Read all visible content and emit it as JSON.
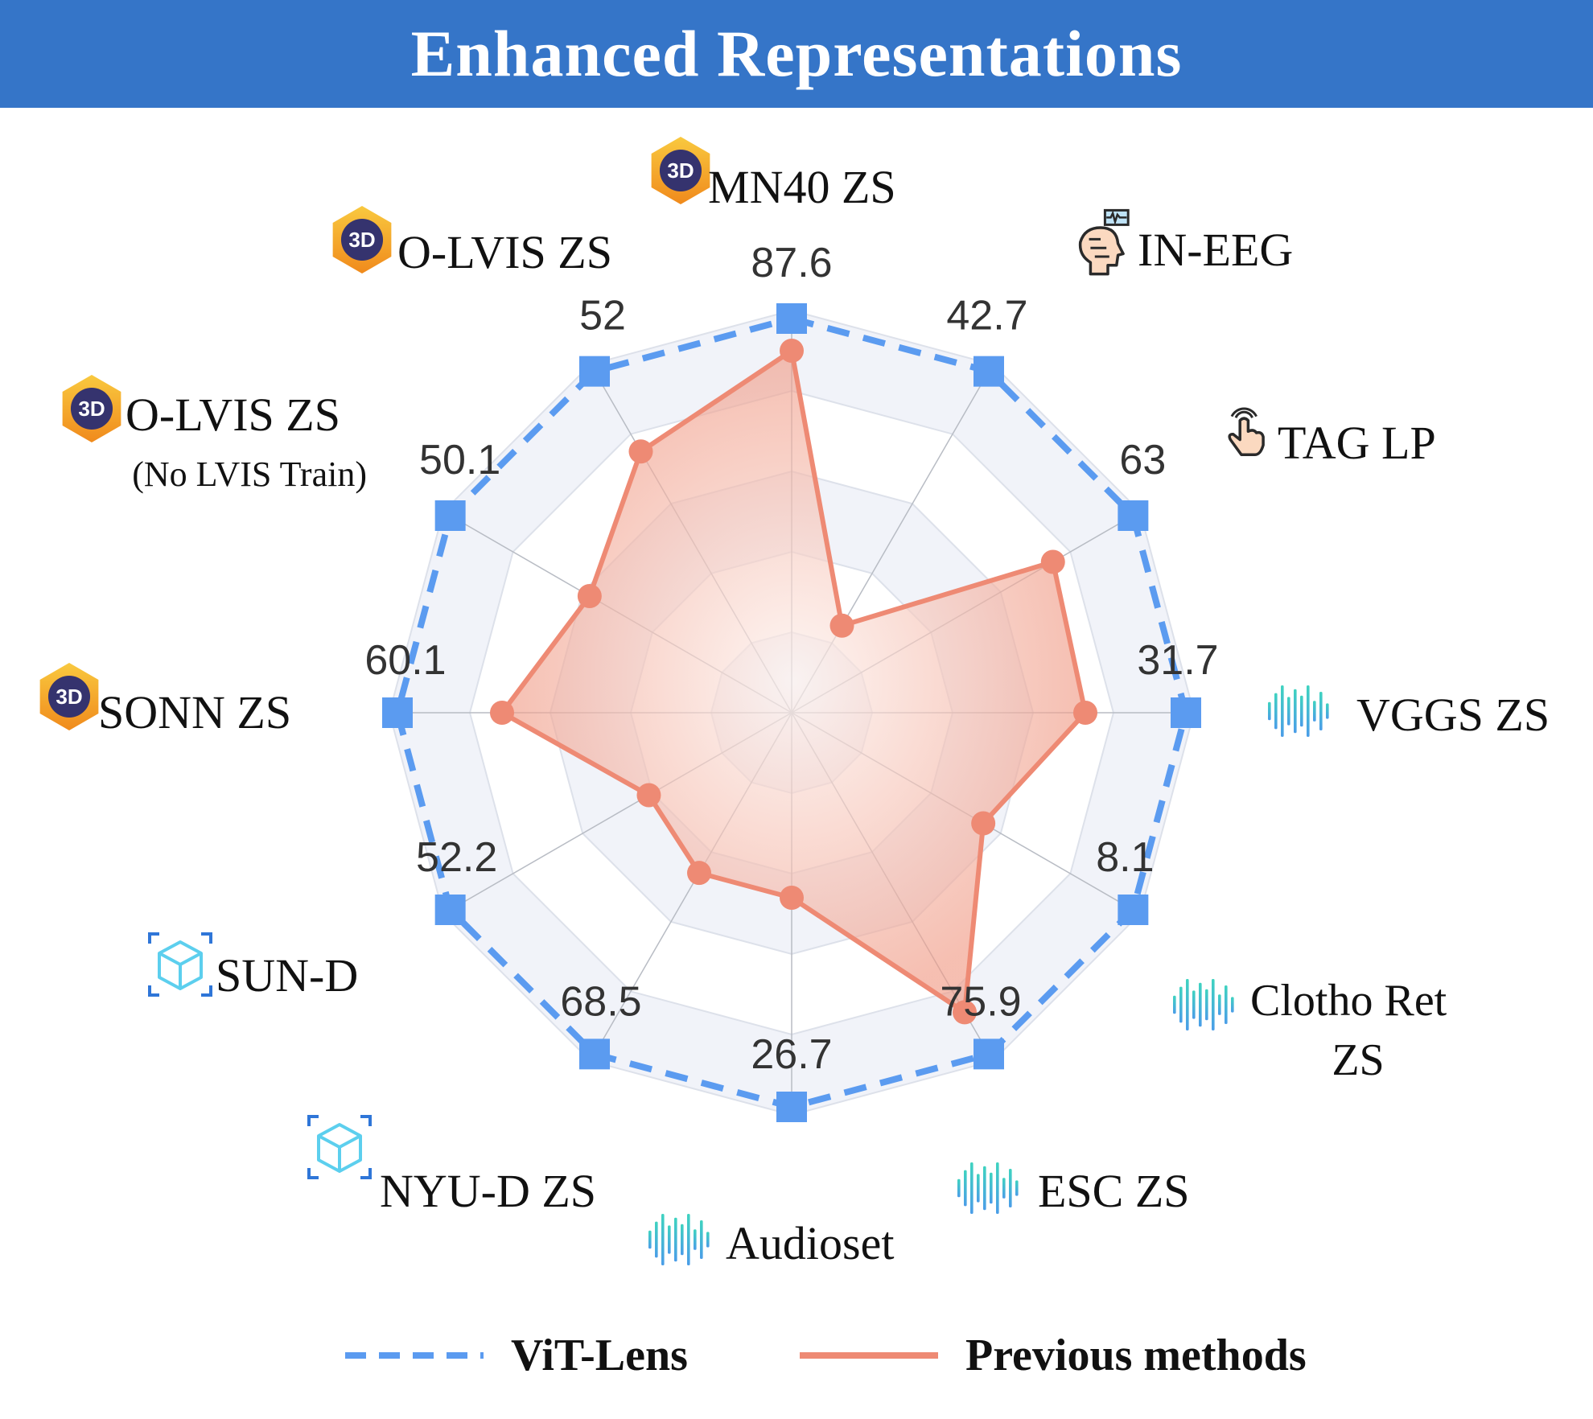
{
  "title": "Enhanced Representations",
  "chart_data": {
    "type": "radar",
    "categories": [
      {
        "label": "MN40 ZS",
        "icon": "3d-cube-hexagon-icon"
      },
      {
        "label": "IN-EEG",
        "icon": "brain-eeg-head-icon"
      },
      {
        "label": "TAG LP",
        "icon": "touch-finger-icon"
      },
      {
        "label": "VGGS ZS",
        "icon": "audio-waveform-icon"
      },
      {
        "label": "Clotho Ret ZS",
        "icon": "audio-waveform-icon"
      },
      {
        "label": "ESC ZS",
        "icon": "audio-waveform-icon"
      },
      {
        "label": "Audioset",
        "icon": "audio-waveform-icon"
      },
      {
        "label": "NYU-D ZS",
        "icon": "depth-cube-icon"
      },
      {
        "label": "SUN-D",
        "icon": "depth-cube-icon"
      },
      {
        "label": "SONN ZS",
        "icon": "3d-cube-hexagon-icon"
      },
      {
        "label": "O-LVIS ZS",
        "sublabel": "(No LVIS Train)",
        "icon": "3d-cube-hexagon-icon"
      },
      {
        "label": "O-LVIS ZS",
        "icon": "3d-cube-hexagon-icon"
      }
    ],
    "series": [
      {
        "name": "ViT-Lens",
        "style": "dashed",
        "marker": "square",
        "color": "#5b9bf0",
        "value_labels": [
          "87.6",
          "42.7",
          "63",
          "31.7",
          "8.1",
          "75.9",
          "26.7",
          "68.5",
          "52.2",
          "60.1",
          "50.1",
          "52"
        ],
        "normalized": [
          0.98,
          0.98,
          0.98,
          0.98,
          0.98,
          0.98,
          0.98,
          0.98,
          0.98,
          0.98,
          0.98,
          0.98
        ]
      },
      {
        "name": "Previous methods",
        "style": "solid",
        "marker": "circle",
        "color": "#ee8a74",
        "fill": "#f6b3a3",
        "normalized": [
          0.9,
          0.25,
          0.75,
          0.73,
          0.55,
          0.86,
          0.46,
          0.46,
          0.41,
          0.72,
          0.58,
          0.75
        ]
      }
    ],
    "rings": 5,
    "axis_max": 1.0,
    "legend": "bottom-center",
    "grid": true
  },
  "legend": {
    "items": [
      {
        "label": "ViT-Lens"
      },
      {
        "label": "Previous methods"
      }
    ]
  }
}
